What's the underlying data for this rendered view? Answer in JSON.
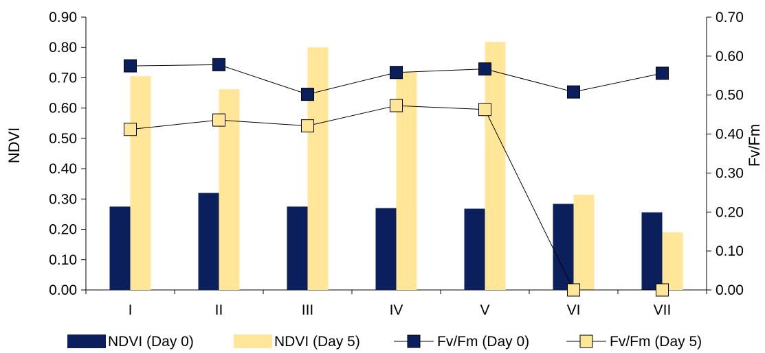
{
  "chart_data": {
    "type": "bar",
    "categories": [
      "I",
      "II",
      "III",
      "IV",
      "V",
      "VI",
      "VII"
    ],
    "series": [
      {
        "name": "NDVI (Day 0)",
        "kind": "bar",
        "axis": "left",
        "color": "#0A1F5C",
        "values": [
          0.275,
          0.32,
          0.275,
          0.27,
          0.268,
          0.284,
          0.256
        ]
      },
      {
        "name": "NDVI (Day 5)",
        "kind": "bar",
        "axis": "left",
        "color": "#FFE699",
        "values": [
          0.705,
          0.662,
          0.8,
          0.718,
          0.818,
          0.314,
          0.19
        ]
      },
      {
        "name": "Fv/Fm (Day 0)",
        "kind": "line",
        "axis": "right",
        "color": "#0A1F5C",
        "values": [
          0.575,
          0.578,
          0.502,
          0.558,
          0.567,
          0.508,
          0.556
        ]
      },
      {
        "name": "Fv/Fm (Day 5)",
        "kind": "line",
        "axis": "right",
        "color": "#FFE699",
        "values": [
          0.412,
          0.436,
          0.421,
          0.473,
          0.463,
          0.0,
          0.0
        ]
      }
    ],
    "ylabel": "NDVI",
    "ylim": [
      0,
      0.9
    ],
    "yticks": [
      "0.00",
      "0.10",
      "0.20",
      "0.30",
      "0.40",
      "0.50",
      "0.60",
      "0.70",
      "0.80",
      "0.90"
    ],
    "y2label": "Fv/Fm",
    "y2lim": [
      0,
      0.7
    ],
    "y2ticks": [
      "0.00",
      "0.10",
      "0.20",
      "0.30",
      "0.40",
      "0.50",
      "0.60",
      "0.70"
    ],
    "grid": false,
    "legend_position": "bottom"
  }
}
